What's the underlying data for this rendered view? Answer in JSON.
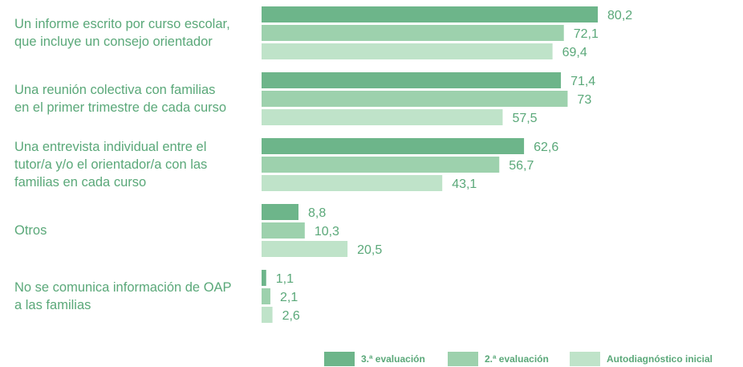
{
  "chart_data": {
    "type": "bar",
    "orientation": "horizontal",
    "categories": [
      "Un informe escrito por curso escolar, que incluye un consejo orientador",
      "Una reunión colectiva con familias en el primer trimestre de cada curso",
      "Una entrevista individual entre el tutor/a y/o el orientador/a con las familias en cada curso",
      "Otros",
      "No se comunica información de OAP a las familias"
    ],
    "series": [
      {
        "name": "3.ª evaluación",
        "color": "#6db58a",
        "values": [
          80.2,
          71.4,
          62.6,
          8.8,
          1.1
        ],
        "value_labels": [
          "80,2",
          "71,4",
          "62,6",
          "8,8",
          "1,1"
        ]
      },
      {
        "name": "2.ª evaluación",
        "color": "#9dd1ad",
        "values": [
          72.1,
          73,
          56.7,
          10.3,
          2.1
        ],
        "value_labels": [
          "72,1",
          "73",
          "56,7",
          "10,3",
          "2,1"
        ]
      },
      {
        "name": "Autodiagnóstico inicial",
        "color": "#bfe3c9",
        "values": [
          69.4,
          57.5,
          43.1,
          20.5,
          2.6
        ],
        "value_labels": [
          "69,4",
          "57,5",
          "43,1",
          "20,5",
          "2,6"
        ]
      }
    ],
    "legend": "bottom-right"
  }
}
